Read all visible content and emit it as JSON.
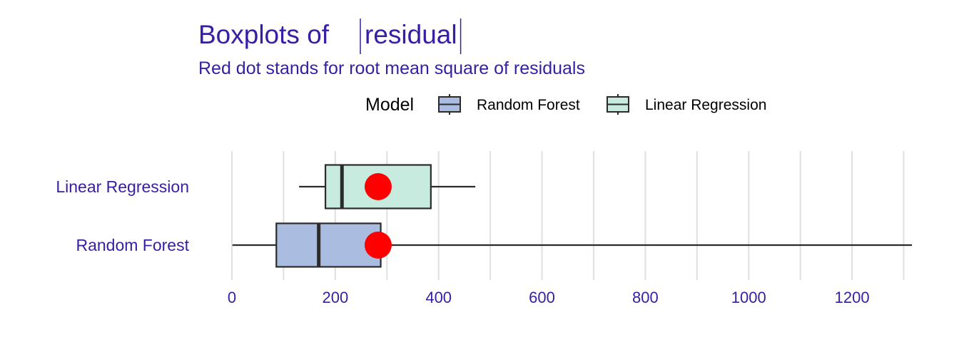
{
  "chart_data": {
    "type": "boxplot",
    "orientation": "horizontal",
    "title_prefix": "Boxplots of ",
    "title_var": "residual",
    "subtitle": "Red dot stands for root mean square of residuals",
    "legend": {
      "title": "Model",
      "placement": "top",
      "entries": [
        "Random Forest",
        "Linear Regression"
      ]
    },
    "xlim": [
      0,
      1320
    ],
    "x_ticks": [
      0,
      200,
      400,
      600,
      800,
      1000,
      1200
    ],
    "x_tick_labels": [
      "0",
      "200",
      "400",
      "600",
      "800",
      "1000",
      "1200"
    ],
    "grid": true,
    "categories": [
      "Linear Regression",
      "Random Forest"
    ],
    "series": [
      {
        "name": "Linear Regression",
        "whisker_low": 130,
        "q1": 181,
        "median": 213,
        "q3": 385,
        "whisker_high": 471,
        "rmse": 283
      },
      {
        "name": "Random Forest",
        "whisker_low": 1,
        "q1": 86,
        "median": 168,
        "q3": 288,
        "whisker_high": 1316,
        "rmse": 283
      }
    ],
    "colors": {
      "Random Forest": "#aabde1",
      "Linear Regression": "#c7ecdf",
      "rmse_dot": "#ff0000",
      "text": "#371ea3",
      "grid": "#e0e0e0"
    }
  }
}
